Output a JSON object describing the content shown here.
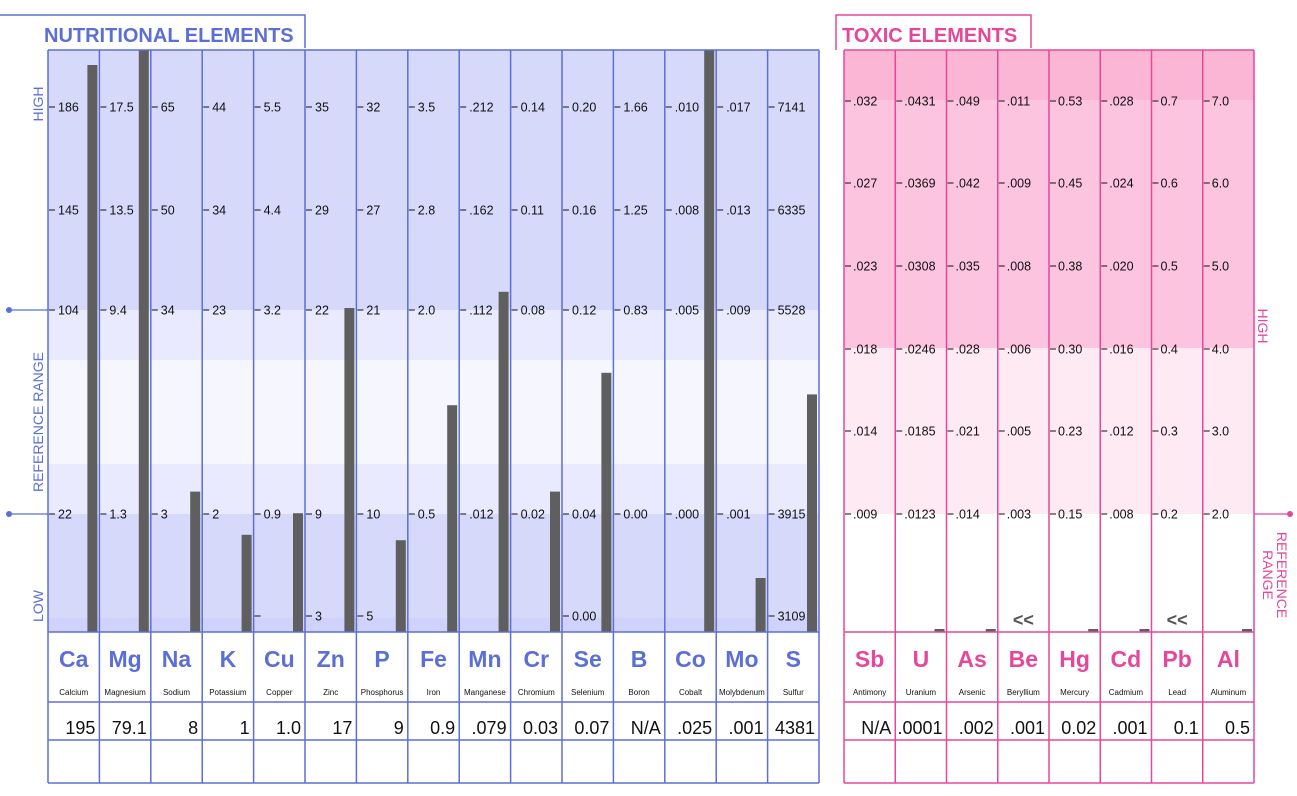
{
  "chart_data": [
    {
      "type": "bar",
      "title": "NUTRITIONAL ELEMENTS",
      "side_labels": {
        "high": "HIGH",
        "range": "REFERENCE  RANGE",
        "low": "LOW"
      },
      "colors": {
        "accent": "#5b6fd6",
        "bar": "#5f5f5f",
        "band_dark": "#d7d9fb",
        "band_mid": "#e9eafd",
        "band_light": "#f6f6fe"
      },
      "elements": [
        {
          "symbol": "Ca",
          "name": "Calcium",
          "value": "195",
          "ticks": [
            "186",
            "145",
            "104",
            "22"
          ],
          "level": 1.05
        },
        {
          "symbol": "Mg",
          "name": "Magnesium",
          "value": "79.1",
          "ticks": [
            "17.5",
            "13.5",
            "9.4",
            "1.3"
          ],
          "level": 1.15
        },
        {
          "symbol": "Na",
          "name": "Sodium",
          "value": "8",
          "ticks": [
            "65",
            "50",
            "34",
            "3"
          ],
          "level": 0.26
        },
        {
          "symbol": "K",
          "name": "Potassium",
          "value": "1",
          "ticks": [
            "44",
            "34",
            "23",
            "2"
          ],
          "level": 0.18
        },
        {
          "symbol": "Cu",
          "name": "Copper",
          "value": "1.0",
          "ticks": [
            "5.5",
            "4.4",
            "3.2",
            "0.9"
          ],
          "level": 0.22,
          "bottom_tick": ""
        },
        {
          "symbol": "Zn",
          "name": "Zinc",
          "value": "17",
          "ticks": [
            "35",
            "29",
            "22",
            "9"
          ],
          "level": 0.6,
          "bottom_tick": "3"
        },
        {
          "symbol": "P",
          "name": "Phosphorus",
          "value": "9",
          "ticks": [
            "32",
            "27",
            "21",
            "10"
          ],
          "level": 0.17,
          "bottom_tick": "5"
        },
        {
          "symbol": "Fe",
          "name": "Iron",
          "value": "0.9",
          "ticks": [
            "3.5",
            "2.8",
            "2.0",
            "0.5"
          ],
          "level": 0.42
        },
        {
          "symbol": "Mn",
          "name": "Manganese",
          "value": ".079",
          "ticks": [
            ".212",
            ".162",
            ".112",
            ".012"
          ],
          "level": 0.63
        },
        {
          "symbol": "Cr",
          "name": "Chromium",
          "value": "0.03",
          "ticks": [
            "0.14",
            "0.11",
            "0.08",
            "0.02"
          ],
          "level": 0.26
        },
        {
          "symbol": "Se",
          "name": "Selenium",
          "value": "0.07",
          "ticks": [
            "0.20",
            "0.16",
            "0.12",
            "0.04"
          ],
          "level": 0.48,
          "bottom_tick": "0.00"
        },
        {
          "symbol": "B",
          "name": "Boron",
          "value": "N/A",
          "ticks": [
            "1.66",
            "1.25",
            "0.83",
            "0.00"
          ],
          "level": 0
        },
        {
          "symbol": "Co",
          "name": "Cobalt",
          "value": ".025",
          "ticks": [
            ".010",
            ".008",
            ".005",
            ".000"
          ],
          "level": 1.15
        },
        {
          "symbol": "Mo",
          "name": "Molybdenum",
          "value": ".001",
          "ticks": [
            ".017",
            ".013",
            ".009",
            ".001"
          ],
          "level": 0.1
        },
        {
          "symbol": "S",
          "name": "Sulfur",
          "value": "4381",
          "ticks": [
            "7141",
            "6335",
            "5528",
            "3915"
          ],
          "level": 0.44,
          "bottom_tick": "3109"
        }
      ]
    },
    {
      "type": "bar",
      "title": "TOXIC ELEMENTS",
      "side_labels": {
        "high": "HIGH",
        "range": "REFERENCE  RANGE"
      },
      "colors": {
        "accent": "#e5489a",
        "bar": "#5f5f5f",
        "band_dark": "#fcc4de",
        "band_mid": "#fdd9ea",
        "band_light": "#feeaf3"
      },
      "elements": [
        {
          "symbol": "Sb",
          "name": "Antimony",
          "value": "N/A",
          "ticks": [
            ".032",
            ".027",
            ".023",
            ".018",
            ".014",
            ".009"
          ],
          "level": 0,
          "marker": ""
        },
        {
          "symbol": "U",
          "name": "Uranium",
          "value": ".0001",
          "ticks": [
            ".0431",
            ".0369",
            ".0308",
            ".0246",
            ".0185",
            ".0123"
          ],
          "level": 0.02,
          "marker": ""
        },
        {
          "symbol": "As",
          "name": "Arsenic",
          "value": ".002",
          "ticks": [
            ".049",
            ".042",
            ".035",
            ".028",
            ".021",
            ".014"
          ],
          "level": 0.02,
          "marker": ""
        },
        {
          "symbol": "Be",
          "name": "Beryllium",
          "value": ".001",
          "ticks": [
            ".011",
            ".009",
            ".008",
            ".006",
            ".005",
            ".003"
          ],
          "level": 0,
          "marker": "<<"
        },
        {
          "symbol": "Hg",
          "name": "Mercury",
          "value": "0.02",
          "ticks": [
            "0.53",
            "0.45",
            "0.38",
            "0.30",
            "0.23",
            "0.15"
          ],
          "level": 0.02,
          "marker": ""
        },
        {
          "symbol": "Cd",
          "name": "Cadmium",
          "value": ".001",
          "ticks": [
            ".028",
            ".024",
            ".020",
            ".016",
            ".012",
            ".008"
          ],
          "level": 0.02,
          "marker": ""
        },
        {
          "symbol": "Pb",
          "name": "Lead",
          "value": "0.1",
          "ticks": [
            "0.7",
            "0.6",
            "0.5",
            "0.4",
            "0.3",
            "0.2"
          ],
          "level": 0,
          "marker": "<<"
        },
        {
          "symbol": "Al",
          "name": "Aluminum",
          "value": "0.5",
          "ticks": [
            "7.0",
            "6.0",
            "5.0",
            "4.0",
            "3.0",
            "2.0"
          ],
          "level": 0.02,
          "marker": ""
        }
      ]
    }
  ]
}
